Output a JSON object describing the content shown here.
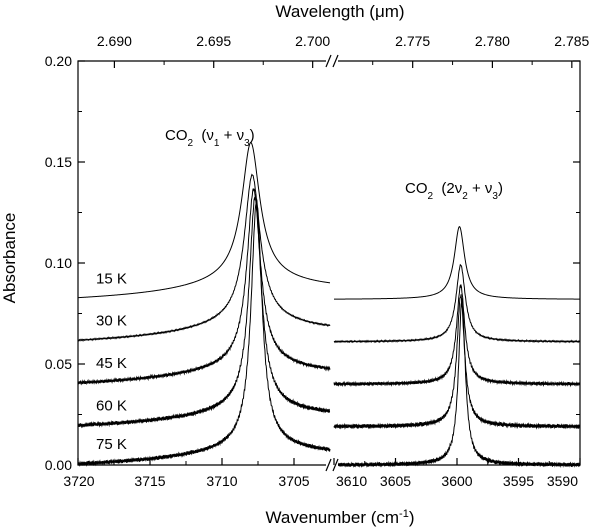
{
  "chart_data": {
    "type": "line",
    "title": "",
    "xlabel": "Wavenumber (cm",
    "xlabel_sup": "-1",
    "xlabel_close": ")",
    "ylabel": "Absorbance",
    "top_xlabel": "Wavelength (",
    "top_xlabel_mu": "μm",
    "top_xlabel_close": ")",
    "ylim": [
      0.0,
      0.2
    ],
    "y_ticks": [
      {
        "v": 0.0,
        "label": "0.00"
      },
      {
        "v": 0.05,
        "label": "0.05"
      },
      {
        "v": 0.1,
        "label": "0.10"
      },
      {
        "v": 0.15,
        "label": "0.15"
      },
      {
        "v": 0.2,
        "label": "0.20"
      }
    ],
    "segments": [
      {
        "name": "left",
        "xlim": [
          3720,
          3702.5
        ]
      },
      {
        "name": "right",
        "xlim": [
          3610,
          3590
        ]
      }
    ],
    "x_ticks": [
      {
        "seg": 0,
        "v": 3720,
        "label": "3720"
      },
      {
        "seg": 0,
        "v": 3715,
        "label": "3715"
      },
      {
        "seg": 0,
        "v": 3710,
        "label": "3710"
      },
      {
        "seg": 0,
        "v": 3705,
        "label": "3705"
      },
      {
        "seg": 1,
        "v": 3610,
        "label": "3610"
      },
      {
        "seg": 1,
        "v": 3605,
        "label": "3605"
      },
      {
        "seg": 1,
        "v": 3600,
        "label": "3600"
      },
      {
        "seg": 1,
        "v": 3595,
        "label": "3595"
      },
      {
        "seg": 1,
        "v": 3590,
        "label": "3590"
      }
    ],
    "top_ticks": [
      {
        "seg": 0,
        "um": 2.69,
        "label": "2.690"
      },
      {
        "seg": 0,
        "um": 2.695,
        "label": "2.695"
      },
      {
        "seg": 0,
        "um": 2.7,
        "label": "2.700"
      },
      {
        "seg": 1,
        "um": 2.775,
        "label": "2.775"
      },
      {
        "seg": 1,
        "um": 2.78,
        "label": "2.780"
      },
      {
        "seg": 1,
        "um": 2.785,
        "label": "2.785"
      }
    ],
    "series": [
      {
        "name": "15 K",
        "baseline": 0.082,
        "left_rise": 0.012,
        "right_rise": 0.001,
        "peak1_center": 3708.0,
        "peak1_height": 0.063,
        "peak1_width": 0.75,
        "peak2_center": 3599.8,
        "peak2_height": 0.035,
        "peak2_width": 0.5,
        "noise": 0.0
      },
      {
        "name": "30 K",
        "baseline": 0.061,
        "left_rise": 0.012,
        "right_rise": 0.001,
        "peak1_center": 3707.9,
        "peak1_height": 0.068,
        "peak1_width": 0.65,
        "peak2_center": 3599.7,
        "peak2_height": 0.037,
        "peak2_width": 0.45,
        "noise": 0.0003
      },
      {
        "name": "45 K",
        "baseline": 0.04,
        "left_rise": 0.011,
        "right_rise": 0.001,
        "peak1_center": 3707.8,
        "peak1_height": 0.083,
        "peak1_width": 0.55,
        "peak2_center": 3599.7,
        "peak2_height": 0.048,
        "peak2_width": 0.4,
        "noise": 0.0007
      },
      {
        "name": "60 K",
        "baseline": 0.019,
        "left_rise": 0.01,
        "right_rise": 0.001,
        "peak1_center": 3707.7,
        "peak1_height": 0.101,
        "peak1_width": 0.5,
        "peak2_center": 3599.7,
        "peak2_height": 0.064,
        "peak2_width": 0.37,
        "noise": 0.0009
      },
      {
        "name": "75 K",
        "baseline": 0.0,
        "left_rise": 0.01,
        "right_rise": 0.001,
        "peak1_center": 3707.6,
        "peak1_height": 0.118,
        "peak1_width": 0.45,
        "peak2_center": 3599.6,
        "peak2_height": 0.081,
        "peak2_width": 0.33,
        "noise": 0.0009
      }
    ],
    "annotations": {
      "peak1": {
        "prefix": "CO",
        "sub": "2",
        "mid": "  (ν",
        "sub1": "1",
        "plus": " + ν",
        "sub3": "3",
        "close": ")"
      },
      "peak2": {
        "prefix": "CO",
        "sub": "2",
        "mid": "  (2ν",
        "sub1": "2",
        "plus": " + ν",
        "sub3": "3",
        "close": ")"
      }
    },
    "grid": false,
    "axis_break": "//"
  }
}
